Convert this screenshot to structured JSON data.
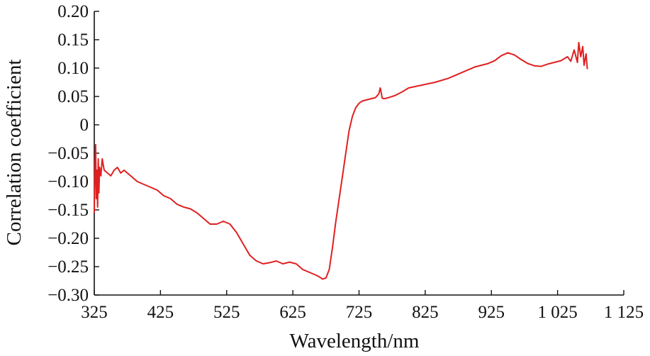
{
  "chart_data": {
    "type": "line",
    "xlabel": "Wavelength/nm",
    "ylabel": "Correlation coefficient",
    "xlim": [
      325,
      1125
    ],
    "ylim": [
      -0.3,
      0.2
    ],
    "x_ticks": [
      325,
      425,
      525,
      625,
      725,
      825,
      925,
      1025,
      1125
    ],
    "x_tick_labels": [
      "325",
      "425",
      "525",
      "625",
      "725",
      "825",
      "925",
      "1 025",
      "1 125"
    ],
    "y_ticks": [
      0.2,
      0.15,
      0.1,
      0.05,
      0,
      -0.05,
      -0.1,
      -0.15,
      -0.2,
      -0.25,
      -0.3
    ],
    "y_tick_labels": [
      "0.20",
      "0.15",
      "0.10",
      "0.05",
      "0",
      "−0.05",
      "−0.10",
      "−0.15",
      "−0.20",
      "−0.25",
      "−0.30"
    ],
    "grid": false,
    "line_color": "#e02020",
    "series": [
      {
        "x": [
          325,
          326,
          327,
          328,
          329,
          330,
          331,
          332,
          333,
          335,
          337,
          340,
          345,
          350,
          355,
          360,
          365,
          370,
          375,
          380,
          390,
          400,
          410,
          420,
          430,
          440,
          450,
          460,
          470,
          480,
          490,
          500,
          510,
          520,
          530,
          540,
          550,
          560,
          570,
          580,
          590,
          600,
          610,
          620,
          630,
          640,
          650,
          660,
          665,
          670,
          675,
          680,
          685,
          690,
          695,
          700,
          705,
          710,
          715,
          720,
          725,
          730,
          740,
          750,
          755,
          757,
          758,
          760,
          763,
          770,
          780,
          790,
          800,
          820,
          840,
          860,
          880,
          900,
          920,
          930,
          940,
          950,
          960,
          970,
          980,
          990,
          1000,
          1010,
          1020,
          1030,
          1040,
          1045,
          1050,
          1055,
          1057,
          1060,
          1063,
          1065,
          1068,
          1070
        ],
        "y": [
          -0.155,
          -0.07,
          -0.035,
          -0.13,
          -0.08,
          -0.145,
          -0.06,
          -0.12,
          -0.075,
          -0.09,
          -0.06,
          -0.08,
          -0.085,
          -0.09,
          -0.08,
          -0.075,
          -0.085,
          -0.08,
          -0.085,
          -0.09,
          -0.1,
          -0.105,
          -0.11,
          -0.115,
          -0.125,
          -0.13,
          -0.14,
          -0.145,
          -0.148,
          -0.155,
          -0.165,
          -0.175,
          -0.175,
          -0.17,
          -0.175,
          -0.19,
          -0.21,
          -0.23,
          -0.24,
          -0.245,
          -0.243,
          -0.24,
          -0.245,
          -0.242,
          -0.245,
          -0.255,
          -0.26,
          -0.265,
          -0.268,
          -0.272,
          -0.27,
          -0.255,
          -0.215,
          -0.17,
          -0.13,
          -0.09,
          -0.05,
          -0.01,
          0.015,
          0.03,
          0.038,
          0.042,
          0.045,
          0.048,
          0.055,
          0.065,
          0.06,
          0.047,
          0.046,
          0.048,
          0.052,
          0.058,
          0.065,
          0.07,
          0.075,
          0.082,
          0.092,
          0.102,
          0.108,
          0.113,
          0.122,
          0.127,
          0.123,
          0.115,
          0.108,
          0.104,
          0.103,
          0.107,
          0.11,
          0.113,
          0.12,
          0.112,
          0.132,
          0.11,
          0.145,
          0.12,
          0.138,
          0.105,
          0.125,
          0.098
        ]
      }
    ]
  }
}
